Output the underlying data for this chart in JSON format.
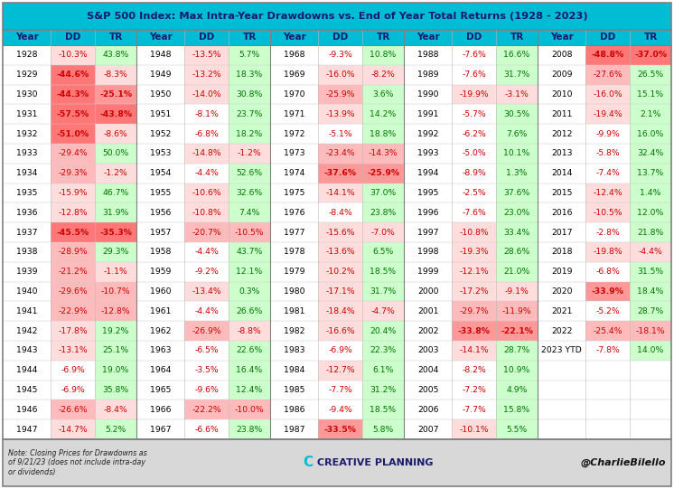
{
  "title": "S&P 500 Index: Max Intra-Year Drawdowns vs. End of Year Total Returns (1928 - 2023)",
  "data": [
    [
      "1928",
      "-10.3%",
      "43.8%"
    ],
    [
      "1929",
      "-44.6%",
      "-8.3%"
    ],
    [
      "1930",
      "-44.3%",
      "-25.1%"
    ],
    [
      "1931",
      "-57.5%",
      "-43.8%"
    ],
    [
      "1932",
      "-51.0%",
      "-8.6%"
    ],
    [
      "1933",
      "-29.4%",
      "50.0%"
    ],
    [
      "1934",
      "-29.3%",
      "-1.2%"
    ],
    [
      "1935",
      "-15.9%",
      "46.7%"
    ],
    [
      "1936",
      "-12.8%",
      "31.9%"
    ],
    [
      "1937",
      "-45.5%",
      "-35.3%"
    ],
    [
      "1938",
      "-28.9%",
      "29.3%"
    ],
    [
      "1939",
      "-21.2%",
      "-1.1%"
    ],
    [
      "1940",
      "-29.6%",
      "-10.7%"
    ],
    [
      "1941",
      "-22.9%",
      "-12.8%"
    ],
    [
      "1942",
      "-17.8%",
      "19.2%"
    ],
    [
      "1943",
      "-13.1%",
      "25.1%"
    ],
    [
      "1944",
      "-6.9%",
      "19.0%"
    ],
    [
      "1945",
      "-6.9%",
      "35.8%"
    ],
    [
      "1946",
      "-26.6%",
      "-8.4%"
    ],
    [
      "1947",
      "-14.7%",
      "5.2%"
    ],
    [
      "1948",
      "-13.5%",
      "5.7%"
    ],
    [
      "1949",
      "-13.2%",
      "18.3%"
    ],
    [
      "1950",
      "-14.0%",
      "30.8%"
    ],
    [
      "1951",
      "-8.1%",
      "23.7%"
    ],
    [
      "1952",
      "-6.8%",
      "18.2%"
    ],
    [
      "1953",
      "-14.8%",
      "-1.2%"
    ],
    [
      "1954",
      "-4.4%",
      "52.6%"
    ],
    [
      "1955",
      "-10.6%",
      "32.6%"
    ],
    [
      "1956",
      "-10.8%",
      "7.4%"
    ],
    [
      "1957",
      "-20.7%",
      "-10.5%"
    ],
    [
      "1958",
      "-4.4%",
      "43.7%"
    ],
    [
      "1959",
      "-9.2%",
      "12.1%"
    ],
    [
      "1960",
      "-13.4%",
      "0.3%"
    ],
    [
      "1961",
      "-4.4%",
      "26.6%"
    ],
    [
      "1962",
      "-26.9%",
      "-8.8%"
    ],
    [
      "1963",
      "-6.5%",
      "22.6%"
    ],
    [
      "1964",
      "-3.5%",
      "16.4%"
    ],
    [
      "1965",
      "-9.6%",
      "12.4%"
    ],
    [
      "1966",
      "-22.2%",
      "-10.0%"
    ],
    [
      "1967",
      "-6.6%",
      "23.8%"
    ],
    [
      "1968",
      "-9.3%",
      "10.8%"
    ],
    [
      "1969",
      "-16.0%",
      "-8.2%"
    ],
    [
      "1970",
      "-25.9%",
      "3.6%"
    ],
    [
      "1971",
      "-13.9%",
      "14.2%"
    ],
    [
      "1972",
      "-5.1%",
      "18.8%"
    ],
    [
      "1973",
      "-23.4%",
      "-14.3%"
    ],
    [
      "1974",
      "-37.6%",
      "-25.9%"
    ],
    [
      "1975",
      "-14.1%",
      "37.0%"
    ],
    [
      "1976",
      "-8.4%",
      "23.8%"
    ],
    [
      "1977",
      "-15.6%",
      "-7.0%"
    ],
    [
      "1978",
      "-13.6%",
      "6.5%"
    ],
    [
      "1979",
      "-10.2%",
      "18.5%"
    ],
    [
      "1980",
      "-17.1%",
      "31.7%"
    ],
    [
      "1981",
      "-18.4%",
      "-4.7%"
    ],
    [
      "1982",
      "-16.6%",
      "20.4%"
    ],
    [
      "1983",
      "-6.9%",
      "22.3%"
    ],
    [
      "1984",
      "-12.7%",
      "6.1%"
    ],
    [
      "1985",
      "-7.7%",
      "31.2%"
    ],
    [
      "1986",
      "-9.4%",
      "18.5%"
    ],
    [
      "1987",
      "-33.5%",
      "5.8%"
    ],
    [
      "1988",
      "-7.6%",
      "16.6%"
    ],
    [
      "1989",
      "-7.6%",
      "31.7%"
    ],
    [
      "1990",
      "-19.9%",
      "-3.1%"
    ],
    [
      "1991",
      "-5.7%",
      "30.5%"
    ],
    [
      "1992",
      "-6.2%",
      "7.6%"
    ],
    [
      "1993",
      "-5.0%",
      "10.1%"
    ],
    [
      "1994",
      "-8.9%",
      "1.3%"
    ],
    [
      "1995",
      "-2.5%",
      "37.6%"
    ],
    [
      "1996",
      "-7.6%",
      "23.0%"
    ],
    [
      "1997",
      "-10.8%",
      "33.4%"
    ],
    [
      "1998",
      "-19.3%",
      "28.6%"
    ],
    [
      "1999",
      "-12.1%",
      "21.0%"
    ],
    [
      "2000",
      "-17.2%",
      "-9.1%"
    ],
    [
      "2001",
      "-29.7%",
      "-11.9%"
    ],
    [
      "2002",
      "-33.8%",
      "-22.1%"
    ],
    [
      "2003",
      "-14.1%",
      "28.7%"
    ],
    [
      "2004",
      "-8.2%",
      "10.9%"
    ],
    [
      "2005",
      "-7.2%",
      "4.9%"
    ],
    [
      "2006",
      "-7.7%",
      "15.8%"
    ],
    [
      "2007",
      "-10.1%",
      "5.5%"
    ],
    [
      "2008",
      "-48.8%",
      "-37.0%"
    ],
    [
      "2009",
      "-27.6%",
      "26.5%"
    ],
    [
      "2010",
      "-16.0%",
      "15.1%"
    ],
    [
      "2011",
      "-19.4%",
      "2.1%"
    ],
    [
      "2012",
      "-9.9%",
      "16.0%"
    ],
    [
      "2013",
      "-5.8%",
      "32.4%"
    ],
    [
      "2014",
      "-7.4%",
      "13.7%"
    ],
    [
      "2015",
      "-12.4%",
      "1.4%"
    ],
    [
      "2016",
      "-10.5%",
      "12.0%"
    ],
    [
      "2017",
      "-2.8%",
      "21.8%"
    ],
    [
      "2018",
      "-19.8%",
      "-4.4%"
    ],
    [
      "2019",
      "-6.8%",
      "31.5%"
    ],
    [
      "2020",
      "-33.9%",
      "18.4%"
    ],
    [
      "2021",
      "-5.2%",
      "28.7%"
    ],
    [
      "2022",
      "-25.4%",
      "-18.1%"
    ],
    [
      "2023 YTD",
      "-7.8%",
      "14.0%"
    ]
  ],
  "footer_note": "Note: Closing Prices for Drawdowns as\nof 9/21/23 (does not include intra-day\nor dividends)",
  "footer_twitter": "@CharlieBilello",
  "cyan": "#00bcd4",
  "light_gray": "#d8d8d8",
  "white": "#ffffff",
  "border_color": "#808080",
  "title_color": "#1a1a6e",
  "header_text_color": "#1a1a6e",
  "dd_text_red": "#cc0000",
  "tr_text_green": "#007700",
  "tr_text_red": "#cc0000",
  "year_text_color": "#000000",
  "rows_per_col": 20,
  "num_groups": 5,
  "figw": 7.46,
  "figh": 5.41,
  "dpi": 100
}
